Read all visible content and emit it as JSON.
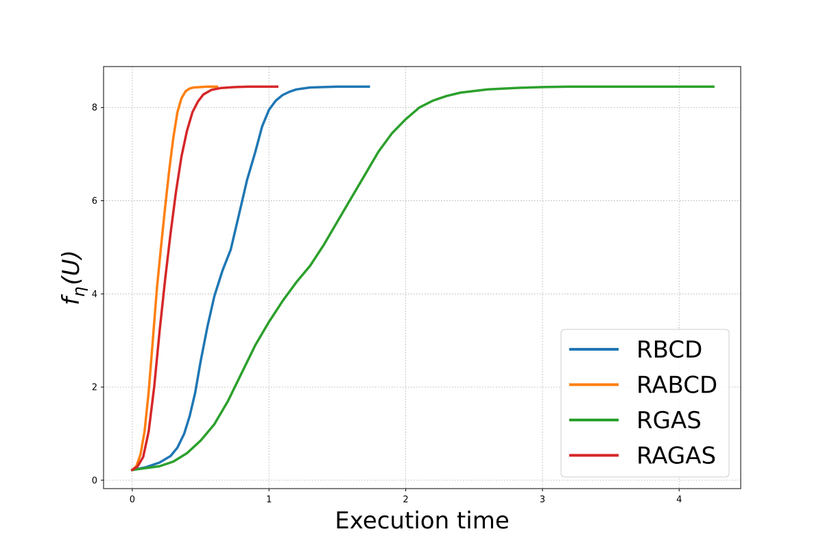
{
  "chart_data": {
    "type": "line",
    "title": "",
    "xlabel": "Execution time",
    "ylabel_main": "f",
    "ylabel_sub": "η",
    "ylabel_arg": "(U)",
    "xlim": [
      -0.21,
      4.45
    ],
    "ylim": [
      -0.18,
      8.88
    ],
    "xticks": [
      0,
      1,
      2,
      3,
      4
    ],
    "yticks": [
      0,
      2,
      4,
      6,
      8
    ],
    "grid": true,
    "legend_position": "bottom-right",
    "series": [
      {
        "name": "RBCD",
        "color": "#1f77b4",
        "x": [
          0,
          0.1,
          0.2,
          0.28,
          0.33,
          0.38,
          0.42,
          0.46,
          0.5,
          0.55,
          0.6,
          0.66,
          0.72,
          0.78,
          0.84,
          0.9,
          0.95,
          1.0,
          1.05,
          1.1,
          1.15,
          1.2,
          1.3,
          1.4,
          1.5,
          1.6,
          1.73
        ],
        "y": [
          0.22,
          0.28,
          0.38,
          0.52,
          0.7,
          1.0,
          1.38,
          1.88,
          2.55,
          3.3,
          3.95,
          4.5,
          4.95,
          5.7,
          6.45,
          7.05,
          7.6,
          7.95,
          8.15,
          8.27,
          8.34,
          8.39,
          8.43,
          8.44,
          8.45,
          8.45,
          8.45
        ]
      },
      {
        "name": "RABCD",
        "color": "#ff7f0e",
        "x": [
          0,
          0.03,
          0.06,
          0.09,
          0.12,
          0.15,
          0.18,
          0.21,
          0.24,
          0.27,
          0.3,
          0.33,
          0.36,
          0.39,
          0.42,
          0.45,
          0.5,
          0.55,
          0.62
        ],
        "y": [
          0.22,
          0.3,
          0.55,
          1.05,
          1.9,
          3.0,
          4.1,
          5.0,
          5.85,
          6.65,
          7.35,
          7.9,
          8.2,
          8.35,
          8.41,
          8.43,
          8.44,
          8.45,
          8.45
        ]
      },
      {
        "name": "RGAS",
        "color": "#2ca02c",
        "x": [
          0,
          0.2,
          0.3,
          0.4,
          0.5,
          0.6,
          0.7,
          0.8,
          0.9,
          1.0,
          1.1,
          1.2,
          1.3,
          1.4,
          1.5,
          1.6,
          1.7,
          1.8,
          1.9,
          2.0,
          2.1,
          2.2,
          2.3,
          2.4,
          2.6,
          2.8,
          3.0,
          3.2,
          3.5,
          3.8,
          4.0,
          4.25
        ],
        "y": [
          0.22,
          0.3,
          0.4,
          0.58,
          0.85,
          1.2,
          1.7,
          2.3,
          2.9,
          3.4,
          3.85,
          4.25,
          4.6,
          5.05,
          5.55,
          6.05,
          6.55,
          7.05,
          7.45,
          7.75,
          8.0,
          8.15,
          8.25,
          8.32,
          8.39,
          8.42,
          8.44,
          8.45,
          8.45,
          8.45,
          8.45,
          8.45
        ]
      },
      {
        "name": "RAGAS",
        "color": "#d62728",
        "x": [
          0,
          0.04,
          0.08,
          0.12,
          0.16,
          0.2,
          0.24,
          0.28,
          0.32,
          0.36,
          0.4,
          0.44,
          0.48,
          0.52,
          0.58,
          0.65,
          0.75,
          0.85,
          0.95,
          1.06
        ],
        "y": [
          0.22,
          0.3,
          0.5,
          1.05,
          2.0,
          3.2,
          4.3,
          5.3,
          6.2,
          6.95,
          7.5,
          7.9,
          8.13,
          8.28,
          8.38,
          8.42,
          8.44,
          8.45,
          8.45,
          8.45
        ]
      }
    ]
  }
}
